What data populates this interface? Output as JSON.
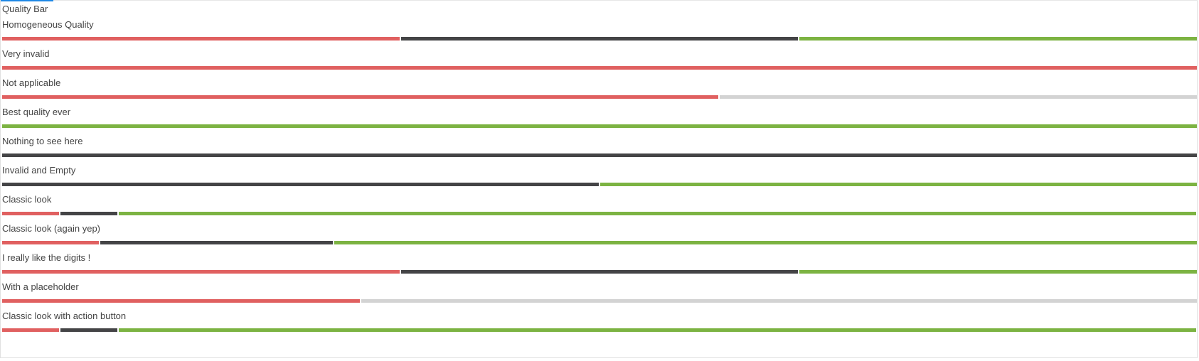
{
  "page": {
    "title": "Quality Bar"
  },
  "colors": {
    "invalid": "#e06060",
    "empty": "#444446",
    "valid": "#7cb342",
    "placeholder": "#d3d3d3",
    "accent": "#1e88e5"
  },
  "rows": [
    {
      "label": "Homogeneous Quality",
      "segments": [
        {
          "type": "invalid",
          "fraction": 0.3333
        },
        {
          "type": "empty",
          "fraction": 0.3333
        },
        {
          "type": "valid",
          "fraction": 0.3334
        }
      ]
    },
    {
      "label": "Very invalid",
      "segments": [
        {
          "type": "invalid",
          "fraction": 1.0
        }
      ]
    },
    {
      "label": "Not applicable",
      "segments": [
        {
          "type": "invalid",
          "fraction": 0.6
        },
        {
          "type": "placeholder",
          "fraction": 0.4
        }
      ]
    },
    {
      "label": "Best quality ever",
      "segments": [
        {
          "type": "valid",
          "fraction": 1.0
        }
      ]
    },
    {
      "label": "Nothing to see here",
      "segments": [
        {
          "type": "empty",
          "fraction": 1.0
        }
      ]
    },
    {
      "label": "Invalid and Empty",
      "segments": [
        {
          "type": "empty",
          "fraction": 0.5
        },
        {
          "type": "valid",
          "fraction": 0.5
        }
      ]
    },
    {
      "label": "Classic look",
      "segments": [
        {
          "type": "invalid",
          "fraction": 0.048
        },
        {
          "type": "empty",
          "fraction": 0.048
        },
        {
          "type": "valid",
          "fraction": 0.904
        }
      ]
    },
    {
      "label": "Classic look (again yep)",
      "segments": [
        {
          "type": "invalid",
          "fraction": 0.081
        },
        {
          "type": "empty",
          "fraction": 0.195
        },
        {
          "type": "valid",
          "fraction": 0.724
        }
      ]
    },
    {
      "label": "I really like the digits !",
      "segments": [
        {
          "type": "invalid",
          "fraction": 0.3333
        },
        {
          "type": "empty",
          "fraction": 0.3333
        },
        {
          "type": "valid",
          "fraction": 0.3334
        }
      ]
    },
    {
      "label": "With a placeholder",
      "segments": [
        {
          "type": "invalid",
          "fraction": 0.3
        },
        {
          "type": "placeholder",
          "fraction": 0.7
        }
      ]
    },
    {
      "label": "Classic look with action button",
      "segments": [
        {
          "type": "invalid",
          "fraction": 0.048
        },
        {
          "type": "empty",
          "fraction": 0.048
        },
        {
          "type": "valid",
          "fraction": 0.904
        }
      ]
    }
  ]
}
